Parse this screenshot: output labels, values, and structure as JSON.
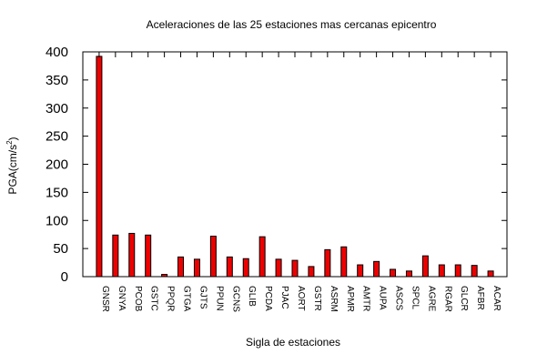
{
  "chart_data": {
    "type": "bar",
    "title": "Aceleraciones de las 25 estaciones mas cercanas epicentro",
    "xlabel": "Sigla de estaciones",
    "ylabel": "PGA(cm/s",
    "ylabel_superscript": "2",
    "ylabel_suffix": ")",
    "ylim": [
      0,
      400
    ],
    "yticks": [
      0,
      50,
      100,
      150,
      200,
      250,
      300,
      350,
      400
    ],
    "grid": false,
    "legend": "none",
    "bar_color": "#ee0000",
    "categories": [
      "GNSR",
      "GNYA",
      "PCOB",
      "GSTC",
      "PPQR",
      "GTGA",
      "GJTS",
      "PPUN",
      "GCNS",
      "GLIB",
      "PCDA",
      "PJAC",
      "AORT",
      "GSTR",
      "ASRM",
      "APMR",
      "AMTR",
      "AUPA",
      "ASCS",
      "SPCL",
      "AGRE",
      "RGAR",
      "GLCR",
      "AFBR",
      "ACAR"
    ],
    "values": [
      392,
      74,
      77,
      74,
      4,
      35,
      31,
      72,
      35,
      32,
      71,
      31,
      29,
      18,
      48,
      53,
      21,
      27,
      13,
      10,
      37,
      21,
      21,
      20,
      10
    ]
  }
}
